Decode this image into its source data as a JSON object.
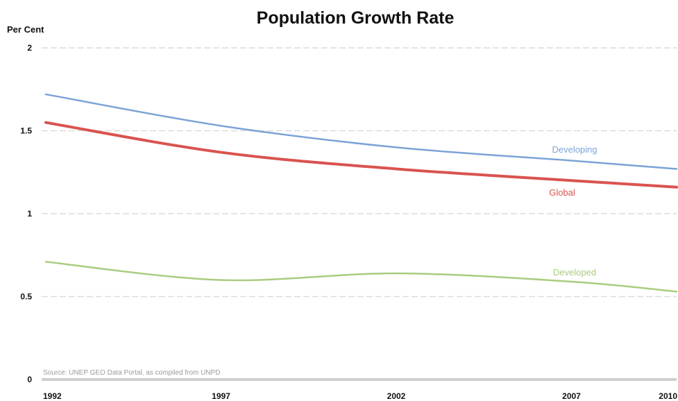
{
  "chart_data": {
    "type": "line",
    "title": "Population Growth Rate",
    "ylabel": "Per Cent",
    "xlabel": "",
    "ylim": [
      0,
      2
    ],
    "yticks": [
      "0",
      "0.5",
      "1",
      "1.5",
      "2"
    ],
    "ytick_values": [
      0,
      0.5,
      1,
      1.5,
      2
    ],
    "xlim": [
      1992,
      2010
    ],
    "xticks": [
      "1992",
      "1997",
      "2002",
      "2007",
      "2010"
    ],
    "xtick_values": [
      1992,
      1997,
      2002,
      2007,
      2010
    ],
    "grid": true,
    "source": "Source: UNEP GEO Data Portal, as compiled from UNPD",
    "series": [
      {
        "name": "Developing",
        "color": "#7ba3d6",
        "x": [
          1992,
          1997,
          2002,
          2007,
          2010
        ],
        "values": [
          1.72,
          1.53,
          1.4,
          1.32,
          1.27
        ]
      },
      {
        "name": "Global",
        "color": "#d9534f",
        "x": [
          1992,
          1997,
          2002,
          2007,
          2010
        ],
        "values": [
          1.55,
          1.37,
          1.27,
          1.2,
          1.16
        ]
      },
      {
        "name": "Developed",
        "color": "#a9cc7e",
        "x": [
          1992,
          1997,
          2002,
          2007,
          2010
        ],
        "values": [
          0.71,
          0.6,
          0.64,
          0.59,
          0.53
        ]
      }
    ]
  }
}
